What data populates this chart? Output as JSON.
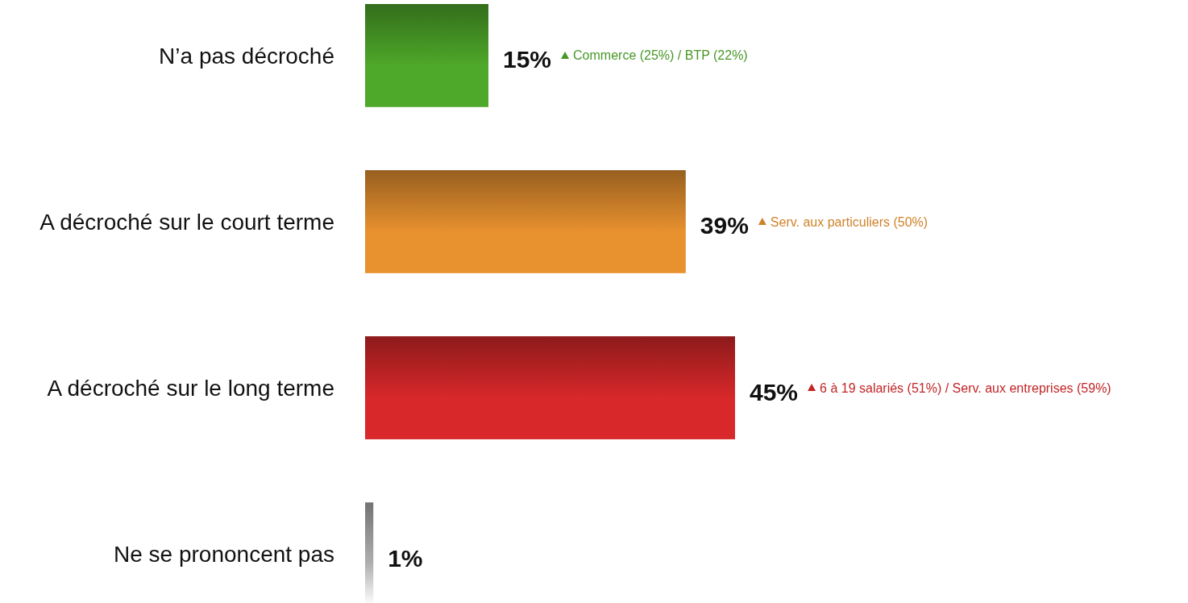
{
  "chart_data": {
    "type": "bar",
    "orientation": "horizontal",
    "categories": [
      "N’a pas décroché",
      "A décroché sur le court terme",
      "A décroché sur le long terme",
      "Ne se prononcent pas"
    ],
    "values": [
      15,
      39,
      45,
      1
    ],
    "colors": [
      "#4ea82a",
      "#e8912f",
      "#d8282a",
      "#b0b0b0"
    ],
    "value_labels": [
      "15%",
      "39%",
      "45%",
      "1%"
    ],
    "annotations": [
      "Commerce (25%) / BTP (22%)",
      "Serv. aux particuliers (50%)",
      "6 à 19 salariés (51%) / Serv. aux entreprises (59%)"
    ]
  }
}
